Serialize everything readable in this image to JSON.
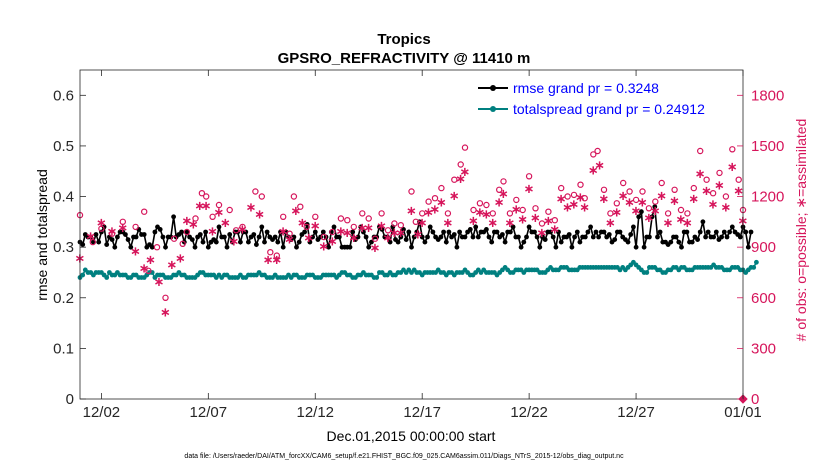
{
  "chart_data": {
    "type": "line",
    "title": "Tropics",
    "subtitle": "GPSRO_REFRACTIVITY @ 11410 m",
    "xlabel": "Dec.01,2015 00:00:00 start",
    "ylabel_left": "rmse and totalspread",
    "ylabel_right": "# of obs: o=possible; ∗=assimilated",
    "xlim": [
      0,
      31
    ],
    "ylim_left": [
      0,
      0.65
    ],
    "ylim_right": [
      0,
      1950
    ],
    "x_ticks": [
      1,
      6,
      11,
      16,
      21,
      26,
      31
    ],
    "x_tick_labels": [
      "12/02",
      "12/07",
      "12/12",
      "12/17",
      "12/22",
      "12/27",
      "01/01"
    ],
    "y_ticks_left": [
      0,
      0.1,
      0.2,
      0.3,
      0.4,
      0.5,
      0.6
    ],
    "y_tick_labels_left": [
      "0",
      "0.1",
      "0.2",
      "0.3",
      "0.4",
      "0.5",
      "0.6"
    ],
    "y_ticks_right": [
      0,
      300,
      600,
      900,
      1200,
      1500,
      1800
    ],
    "y_tick_labels_right": [
      "0",
      "300",
      "600",
      "900",
      "1200",
      "1500",
      "1800"
    ],
    "colors": {
      "rmse": "#000000",
      "spread": "#008080",
      "obs": "#d6155b",
      "legend_text": "#0000ff"
    },
    "step": 0.125,
    "series": [
      {
        "name": "rmse grand pr = 0.3248",
        "values": [
          0.31,
          0.305,
          0.325,
          0.32,
          0.32,
          0.31,
          0.325,
          0.31,
          0.33,
          0.34,
          0.305,
          0.32,
          0.315,
          0.3,
          0.32,
          0.33,
          0.33,
          0.325,
          0.315,
          0.3,
          0.32,
          0.32,
          0.335,
          0.325,
          0.325,
          0.3,
          0.305,
          0.3,
          0.33,
          0.34,
          0.335,
          0.32,
          0.3,
          0.32,
          0.32,
          0.36,
          0.32,
          0.325,
          0.33,
          0.31,
          0.33,
          0.32,
          0.315,
          0.3,
          0.32,
          0.325,
          0.31,
          0.33,
          0.3,
          0.31,
          0.315,
          0.31,
          0.34,
          0.32,
          0.32,
          0.3,
          0.325,
          0.31,
          0.33,
          0.33,
          0.31,
          0.33,
          0.33,
          0.31,
          0.32,
          0.325,
          0.305,
          0.32,
          0.34,
          0.31,
          0.33,
          0.32,
          0.315,
          0.32,
          0.31,
          0.33,
          0.3,
          0.33,
          0.32,
          0.315,
          0.32,
          0.3,
          0.31,
          0.325,
          0.33,
          0.345,
          0.31,
          0.32,
          0.33,
          0.315,
          0.32,
          0.33,
          0.32,
          0.3,
          0.33,
          0.34,
          0.32,
          0.32,
          0.3,
          0.3,
          0.3,
          0.3,
          0.33,
          0.315,
          0.32,
          0.34,
          0.33,
          0.32,
          0.3,
          0.31,
          0.32,
          0.32,
          0.34,
          0.335,
          0.32,
          0.32,
          0.31,
          0.34,
          0.315,
          0.31,
          0.32,
          0.335,
          0.315,
          0.33,
          0.3,
          0.32,
          0.33,
          0.35,
          0.32,
          0.31,
          0.32,
          0.34,
          0.33,
          0.32,
          0.315,
          0.32,
          0.33,
          0.31,
          0.33,
          0.32,
          0.325,
          0.3,
          0.33,
          0.32,
          0.32,
          0.33,
          0.335,
          0.32,
          0.34,
          0.32,
          0.33,
          0.33,
          0.335,
          0.32,
          0.31,
          0.33,
          0.33,
          0.32,
          0.325,
          0.31,
          0.33,
          0.33,
          0.34,
          0.32,
          0.32,
          0.3,
          0.31,
          0.32,
          0.34,
          0.33,
          0.33,
          0.32,
          0.3,
          0.32,
          0.315,
          0.33,
          0.33,
          0.32,
          0.3,
          0.33,
          0.31,
          0.32,
          0.32,
          0.325,
          0.3,
          0.32,
          0.33,
          0.31,
          0.32,
          0.32,
          0.33,
          0.34,
          0.32,
          0.33,
          0.32,
          0.33,
          0.33,
          0.32,
          0.325,
          0.31,
          0.315,
          0.33,
          0.33,
          0.32,
          0.315,
          0.31,
          0.325,
          0.34,
          0.3,
          0.36,
          0.37,
          0.3,
          0.32,
          0.32,
          0.36,
          0.38,
          0.32,
          0.33,
          0.31,
          0.31,
          0.305,
          0.31,
          0.32,
          0.32,
          0.31,
          0.3,
          0.33,
          0.33,
          0.31,
          0.31,
          0.32,
          0.315,
          0.33,
          0.35,
          0.32,
          0.33,
          0.32,
          0.32,
          0.33,
          0.315,
          0.32,
          0.33,
          0.32,
          0.33,
          0.34,
          0.33,
          0.325,
          0.32,
          0.34,
          0.33,
          0.3,
          0.33
        ]
      },
      {
        "name": "totalspread grand pr = 0.24912",
        "values": [
          0.24,
          0.245,
          0.255,
          0.25,
          0.25,
          0.245,
          0.25,
          0.25,
          0.25,
          0.245,
          0.24,
          0.25,
          0.245,
          0.245,
          0.25,
          0.245,
          0.245,
          0.245,
          0.24,
          0.24,
          0.245,
          0.245,
          0.24,
          0.24,
          0.24,
          0.245,
          0.25,
          0.25,
          0.24,
          0.245,
          0.245,
          0.245,
          0.24,
          0.24,
          0.24,
          0.245,
          0.245,
          0.25,
          0.245,
          0.245,
          0.24,
          0.24,
          0.24,
          0.24,
          0.245,
          0.25,
          0.25,
          0.245,
          0.245,
          0.245,
          0.245,
          0.24,
          0.245,
          0.24,
          0.245,
          0.245,
          0.24,
          0.24,
          0.24,
          0.24,
          0.245,
          0.24,
          0.24,
          0.245,
          0.245,
          0.245,
          0.245,
          0.25,
          0.245,
          0.245,
          0.24,
          0.24,
          0.24,
          0.245,
          0.24,
          0.24,
          0.24,
          0.24,
          0.245,
          0.24,
          0.245,
          0.245,
          0.24,
          0.24,
          0.24,
          0.245,
          0.245,
          0.245,
          0.24,
          0.24,
          0.24,
          0.245,
          0.245,
          0.245,
          0.245,
          0.245,
          0.24,
          0.245,
          0.25,
          0.25,
          0.245,
          0.245,
          0.24,
          0.24,
          0.245,
          0.245,
          0.25,
          0.245,
          0.245,
          0.245,
          0.24,
          0.24,
          0.25,
          0.25,
          0.245,
          0.245,
          0.25,
          0.245,
          0.245,
          0.25,
          0.25,
          0.255,
          0.25,
          0.255,
          0.25,
          0.255,
          0.25,
          0.25,
          0.245,
          0.25,
          0.25,
          0.25,
          0.25,
          0.25,
          0.255,
          0.25,
          0.25,
          0.245,
          0.25,
          0.25,
          0.245,
          0.25,
          0.25,
          0.25,
          0.255,
          0.25,
          0.245,
          0.245,
          0.25,
          0.255,
          0.25,
          0.255,
          0.25,
          0.25,
          0.25,
          0.25,
          0.245,
          0.25,
          0.255,
          0.26,
          0.255,
          0.25,
          0.25,
          0.255,
          0.255,
          0.255,
          0.25,
          0.255,
          0.255,
          0.255,
          0.255,
          0.255,
          0.25,
          0.25,
          0.25,
          0.255,
          0.26,
          0.255,
          0.255,
          0.255,
          0.26,
          0.26,
          0.26,
          0.255,
          0.255,
          0.255,
          0.255,
          0.26,
          0.26,
          0.26,
          0.26,
          0.26,
          0.26,
          0.26,
          0.26,
          0.26,
          0.26,
          0.26,
          0.26,
          0.26,
          0.26,
          0.26,
          0.255,
          0.26,
          0.255,
          0.26,
          0.265,
          0.27,
          0.265,
          0.26,
          0.255,
          0.25,
          0.25,
          0.26,
          0.26,
          0.26,
          0.255,
          0.255,
          0.25,
          0.25,
          0.255,
          0.255,
          0.26,
          0.26,
          0.255,
          0.26,
          0.26,
          0.255,
          0.255,
          0.255,
          0.26,
          0.26,
          0.26,
          0.26,
          0.26,
          0.26,
          0.26,
          0.265,
          0.26,
          0.26,
          0.26,
          0.255,
          0.255,
          0.255,
          0.26,
          0.26,
          0.26,
          0.255,
          0.255,
          0.25,
          0.255,
          0.26,
          0.26,
          0.27
        ]
      }
    ],
    "obs_possible": [
      [
        0,
        1090
      ],
      [
        0.6,
        930
      ],
      [
        1,
        1010
      ],
      [
        1.5,
        980
      ],
      [
        2,
        1050
      ],
      [
        2.6,
        1020
      ],
      [
        3,
        1110
      ],
      [
        3.2,
        760
      ],
      [
        3.6,
        900
      ],
      [
        4,
        600
      ],
      [
        4.4,
        950
      ],
      [
        4.8,
        920
      ],
      [
        5,
        990
      ],
      [
        5.4,
        1070
      ],
      [
        5.7,
        1220
      ],
      [
        5.9,
        1200
      ],
      [
        6.2,
        1080
      ],
      [
        6.5,
        1150
      ],
      [
        7,
        1120
      ],
      [
        7.3,
        1000
      ],
      [
        7.6,
        1020
      ],
      [
        8.2,
        1230
      ],
      [
        8.5,
        1200
      ],
      [
        8.9,
        870
      ],
      [
        9.2,
        850
      ],
      [
        9.5,
        1080
      ],
      [
        9.8,
        980
      ],
      [
        10,
        1200
      ],
      [
        10.3,
        1140
      ],
      [
        10.6,
        1020
      ],
      [
        11,
        1080
      ],
      [
        11.4,
        960
      ],
      [
        11.8,
        990
      ],
      [
        12.2,
        1070
      ],
      [
        12.5,
        1060
      ],
      [
        12.8,
        1020
      ],
      [
        13.2,
        1100
      ],
      [
        13.5,
        1070
      ],
      [
        13.8,
        950
      ],
      [
        14.1,
        1100
      ],
      [
        14.4,
        1000
      ],
      [
        14.7,
        1040
      ],
      [
        15,
        1030
      ],
      [
        15.5,
        1230
      ],
      [
        15.7,
        1050
      ],
      [
        16,
        1100
      ],
      [
        16.3,
        1170
      ],
      [
        16.6,
        1190
      ],
      [
        16.9,
        1250
      ],
      [
        17.2,
        1100
      ],
      [
        17.5,
        1300
      ],
      [
        17.8,
        1390
      ],
      [
        18,
        1490
      ],
      [
        18.4,
        1120
      ],
      [
        18.7,
        1160
      ],
      [
        19,
        1150
      ],
      [
        19.3,
        1100
      ],
      [
        19.6,
        1240
      ],
      [
        19.8,
        1290
      ],
      [
        20.1,
        1100
      ],
      [
        20.4,
        1180
      ],
      [
        20.7,
        1120
      ],
      [
        21,
        1320
      ],
      [
        21.3,
        1130
      ],
      [
        21.6,
        1040
      ],
      [
        21.9,
        1110
      ],
      [
        22.2,
        1060
      ],
      [
        22.5,
        1250
      ],
      [
        22.8,
        1200
      ],
      [
        23.1,
        1210
      ],
      [
        23.4,
        1270
      ],
      [
        23.6,
        1190
      ],
      [
        24,
        1450
      ],
      [
        24.2,
        1470
      ],
      [
        24.5,
        1240
      ],
      [
        24.8,
        1100
      ],
      [
        25.1,
        1160
      ],
      [
        25.4,
        1280
      ],
      [
        25.7,
        1230
      ],
      [
        26,
        1180
      ],
      [
        26.3,
        1230
      ],
      [
        26.6,
        1130
      ],
      [
        26.9,
        1170
      ],
      [
        27.2,
        1280
      ],
      [
        27.5,
        1100
      ],
      [
        27.8,
        1240
      ],
      [
        28.1,
        1120
      ],
      [
        28.4,
        1100
      ],
      [
        28.7,
        1250
      ],
      [
        29,
        1470
      ],
      [
        29.3,
        1300
      ],
      [
        29.6,
        1220
      ],
      [
        29.9,
        1340
      ],
      [
        30.2,
        1200
      ],
      [
        30.5,
        1480
      ],
      [
        30.8,
        1300
      ],
      [
        31,
        1120
      ]
    ],
    "obs_assimilated": [
      [
        0,
        840
      ],
      [
        0.5,
        970
      ],
      [
        1,
        1050
      ],
      [
        1.5,
        1000
      ],
      [
        2,
        1020
      ],
      [
        2.6,
        880
      ],
      [
        3,
        780
      ],
      [
        3.3,
        830
      ],
      [
        3.7,
        700
      ],
      [
        4,
        520
      ],
      [
        4.3,
        800
      ],
      [
        4.7,
        840
      ],
      [
        5,
        1060
      ],
      [
        5.3,
        1040
      ],
      [
        5.6,
        1150
      ],
      [
        5.9,
        1150
      ],
      [
        6.2,
        1000
      ],
      [
        6.5,
        1110
      ],
      [
        6.8,
        1050
      ],
      [
        7.2,
        940
      ],
      [
        7.6,
        1010
      ],
      [
        8,
        1140
      ],
      [
        8.4,
        1100
      ],
      [
        8.8,
        830
      ],
      [
        9.2,
        830
      ],
      [
        9.5,
        1000
      ],
      [
        9.8,
        950
      ],
      [
        10.1,
        1120
      ],
      [
        10.4,
        1050
      ],
      [
        10.7,
        960
      ],
      [
        11,
        1030
      ],
      [
        11.4,
        910
      ],
      [
        11.8,
        940
      ],
      [
        12.2,
        1000
      ],
      [
        12.5,
        990
      ],
      [
        12.8,
        960
      ],
      [
        13.2,
        1020
      ],
      [
        13.5,
        1020
      ],
      [
        13.8,
        900
      ],
      [
        14.1,
        1030
      ],
      [
        14.4,
        960
      ],
      [
        14.7,
        990
      ],
      [
        15,
        990
      ],
      [
        15.5,
        1120
      ],
      [
        15.8,
        980
      ],
      [
        16,
        1050
      ],
      [
        16.3,
        1110
      ],
      [
        16.6,
        1130
      ],
      [
        16.9,
        1170
      ],
      [
        17.2,
        1050
      ],
      [
        17.5,
        1210
      ],
      [
        17.8,
        1310
      ],
      [
        18,
        1350
      ],
      [
        18.4,
        1060
      ],
      [
        18.7,
        1110
      ],
      [
        19,
        1100
      ],
      [
        19.3,
        1050
      ],
      [
        19.6,
        1170
      ],
      [
        19.8,
        1220
      ],
      [
        20.1,
        1050
      ],
      [
        20.4,
        1130
      ],
      [
        20.7,
        1070
      ],
      [
        21,
        1250
      ],
      [
        21.3,
        1080
      ],
      [
        21.6,
        990
      ],
      [
        21.9,
        1060
      ],
      [
        22.2,
        1010
      ],
      [
        22.5,
        1190
      ],
      [
        22.8,
        1140
      ],
      [
        23.1,
        1160
      ],
      [
        23.4,
        1200
      ],
      [
        23.6,
        1140
      ],
      [
        24,
        1360
      ],
      [
        24.3,
        1390
      ],
      [
        24.5,
        1190
      ],
      [
        24.8,
        1050
      ],
      [
        25.1,
        1110
      ],
      [
        25.4,
        1210
      ],
      [
        25.7,
        1170
      ],
      [
        26,
        1120
      ],
      [
        26.3,
        1170
      ],
      [
        26.6,
        1080
      ],
      [
        26.9,
        1120
      ],
      [
        27.2,
        1210
      ],
      [
        27.5,
        1050
      ],
      [
        27.8,
        1180
      ],
      [
        28.1,
        1070
      ],
      [
        28.4,
        1050
      ],
      [
        28.7,
        1190
      ],
      [
        29,
        1340
      ],
      [
        29.3,
        1240
      ],
      [
        29.6,
        1160
      ],
      [
        29.9,
        1270
      ],
      [
        30.2,
        1140
      ],
      [
        30.5,
        1380
      ],
      [
        30.8,
        1240
      ],
      [
        31,
        1060
      ]
    ],
    "obs_end_marker": [
      31,
      0
    ],
    "footer": "data file: /Users/raeder/DAI/ATM_forcXX/CAM6_setup/f.e21.FHIST_BGC.f09_025.CAM6assim.011/Diags_NTrS_2015-12/obs_diag_output.nc"
  }
}
